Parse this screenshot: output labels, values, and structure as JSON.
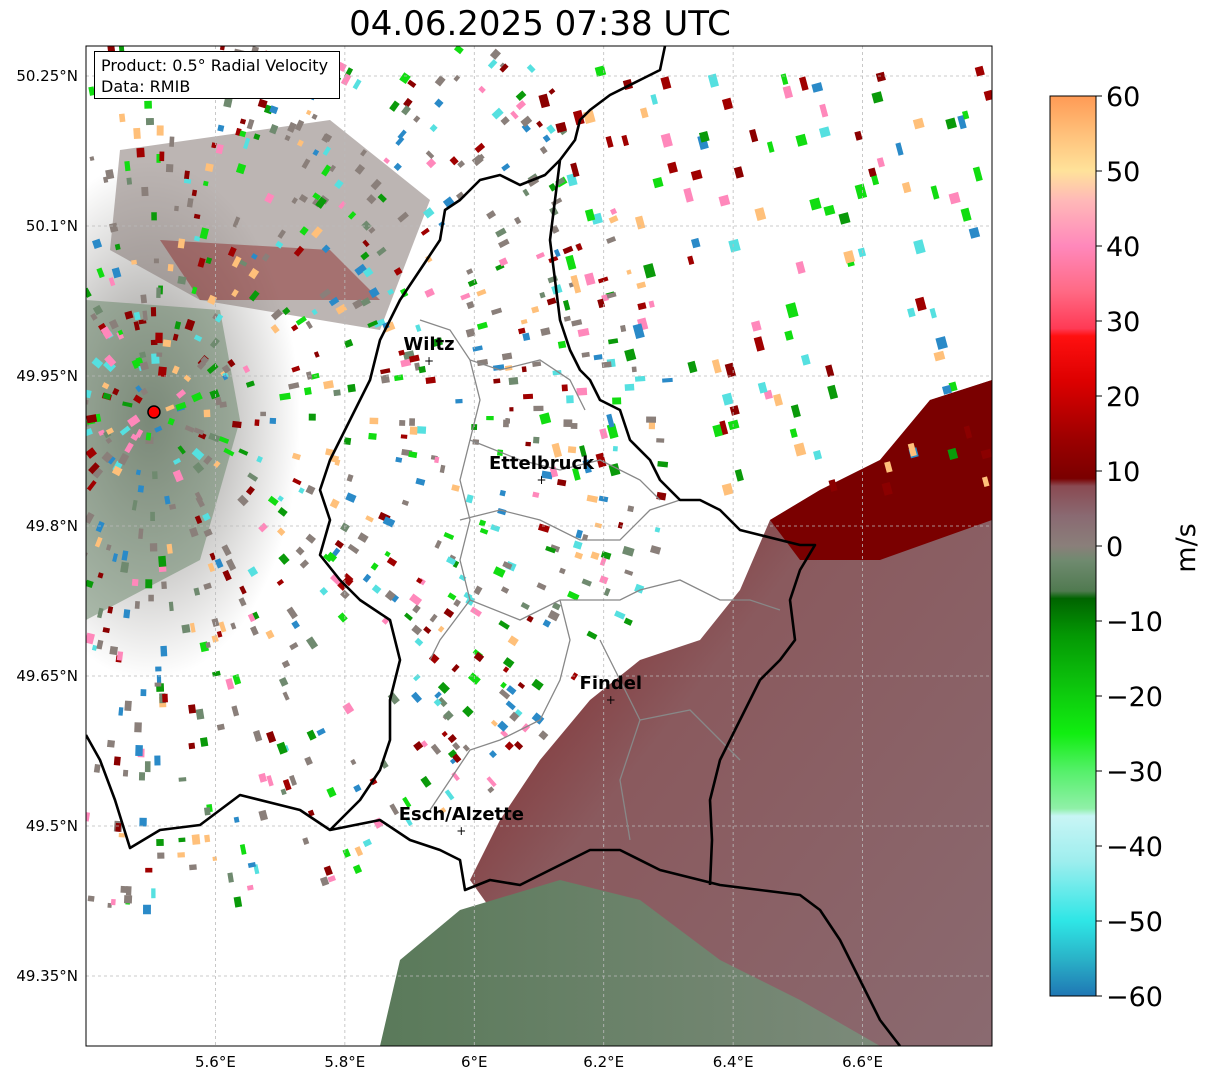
{
  "title": "04.06.2025 07:38 UTC",
  "info_box": {
    "product": "Product: 0.5° Radial Velocity",
    "data_source": "Data: RMIB"
  },
  "map": {
    "lon_range": [
      5.4,
      6.8
    ],
    "lat_range": [
      49.28,
      50.28
    ],
    "lat_ticks": [
      {
        "value": 50.25,
        "label": "50.25°N"
      },
      {
        "value": 50.1,
        "label": "50.1°N"
      },
      {
        "value": 49.95,
        "label": "49.95°N"
      },
      {
        "value": 49.8,
        "label": "49.8°N"
      },
      {
        "value": 49.65,
        "label": "49.65°N"
      },
      {
        "value": 49.5,
        "label": "49.5°N"
      },
      {
        "value": 49.35,
        "label": "49.35°N"
      }
    ],
    "lon_ticks": [
      {
        "value": 5.6,
        "label": "5.6°E"
      },
      {
        "value": 5.8,
        "label": "5.8°E"
      },
      {
        "value": 6.0,
        "label": "6°E"
      },
      {
        "value": 6.2,
        "label": "6.2°E"
      },
      {
        "value": 6.4,
        "label": "6.4°E"
      },
      {
        "value": 6.6,
        "label": "6.6°E"
      }
    ],
    "gridlines": true,
    "radar_site": {
      "lon": 5.505,
      "lat": 49.914
    },
    "cities": [
      {
        "name": "Wiltz",
        "lon": 5.93,
        "lat": 49.966
      },
      {
        "name": "Ettelbruck",
        "lon": 6.104,
        "lat": 49.847
      },
      {
        "name": "Findel",
        "lon": 6.211,
        "lat": 49.627
      },
      {
        "name": "Esch/Alzette",
        "lon": 5.98,
        "lat": 49.496
      }
    ]
  },
  "colorbar": {
    "label": "m/s",
    "min": -60,
    "max": 60,
    "ticks": [
      {
        "value": 60,
        "label": "60"
      },
      {
        "value": 50,
        "label": "50"
      },
      {
        "value": 40,
        "label": "40"
      },
      {
        "value": 30,
        "label": "30"
      },
      {
        "value": 20,
        "label": "20"
      },
      {
        "value": 10,
        "label": "10"
      },
      {
        "value": 0,
        "label": "0"
      },
      {
        "value": -10,
        "label": "−10"
      },
      {
        "value": -20,
        "label": "−20"
      },
      {
        "value": -30,
        "label": "−30"
      },
      {
        "value": -40,
        "label": "−40"
      },
      {
        "value": -50,
        "label": "−50"
      },
      {
        "value": -60,
        "label": "−60"
      }
    ],
    "stops": [
      {
        "value": -60,
        "color": "#1f77b4"
      },
      {
        "value": -55,
        "color": "#2ab3c8"
      },
      {
        "value": -50,
        "color": "#2ee6e6"
      },
      {
        "value": -42,
        "color": "#9eeeee"
      },
      {
        "value": -36,
        "color": "#c8f5f5"
      },
      {
        "value": -35,
        "color": "#90f0a8"
      },
      {
        "value": -30,
        "color": "#55f06a"
      },
      {
        "value": -25,
        "color": "#11ee11"
      },
      {
        "value": -18,
        "color": "#0cc00c"
      },
      {
        "value": -12,
        "color": "#049904"
      },
      {
        "value": -7,
        "color": "#006400"
      },
      {
        "value": -6,
        "color": "#507a50"
      },
      {
        "value": -2,
        "color": "#6f8a6f"
      },
      {
        "value": 0,
        "color": "#8a7f7a"
      },
      {
        "value": 4,
        "color": "#8a6a72"
      },
      {
        "value": 8,
        "color": "#8a4a52"
      },
      {
        "value": 9,
        "color": "#7a0000"
      },
      {
        "value": 14,
        "color": "#9a0000"
      },
      {
        "value": 22,
        "color": "#dd0000"
      },
      {
        "value": 28,
        "color": "#ff1010"
      },
      {
        "value": 29,
        "color": "#ff3a55"
      },
      {
        "value": 34,
        "color": "#ff6a85"
      },
      {
        "value": 40,
        "color": "#ff88bb"
      },
      {
        "value": 46,
        "color": "#ffb8b8"
      },
      {
        "value": 50,
        "color": "#ffe29a"
      },
      {
        "value": 55,
        "color": "#ffc07a"
      },
      {
        "value": 60,
        "color": "#ff9a55"
      }
    ]
  }
}
